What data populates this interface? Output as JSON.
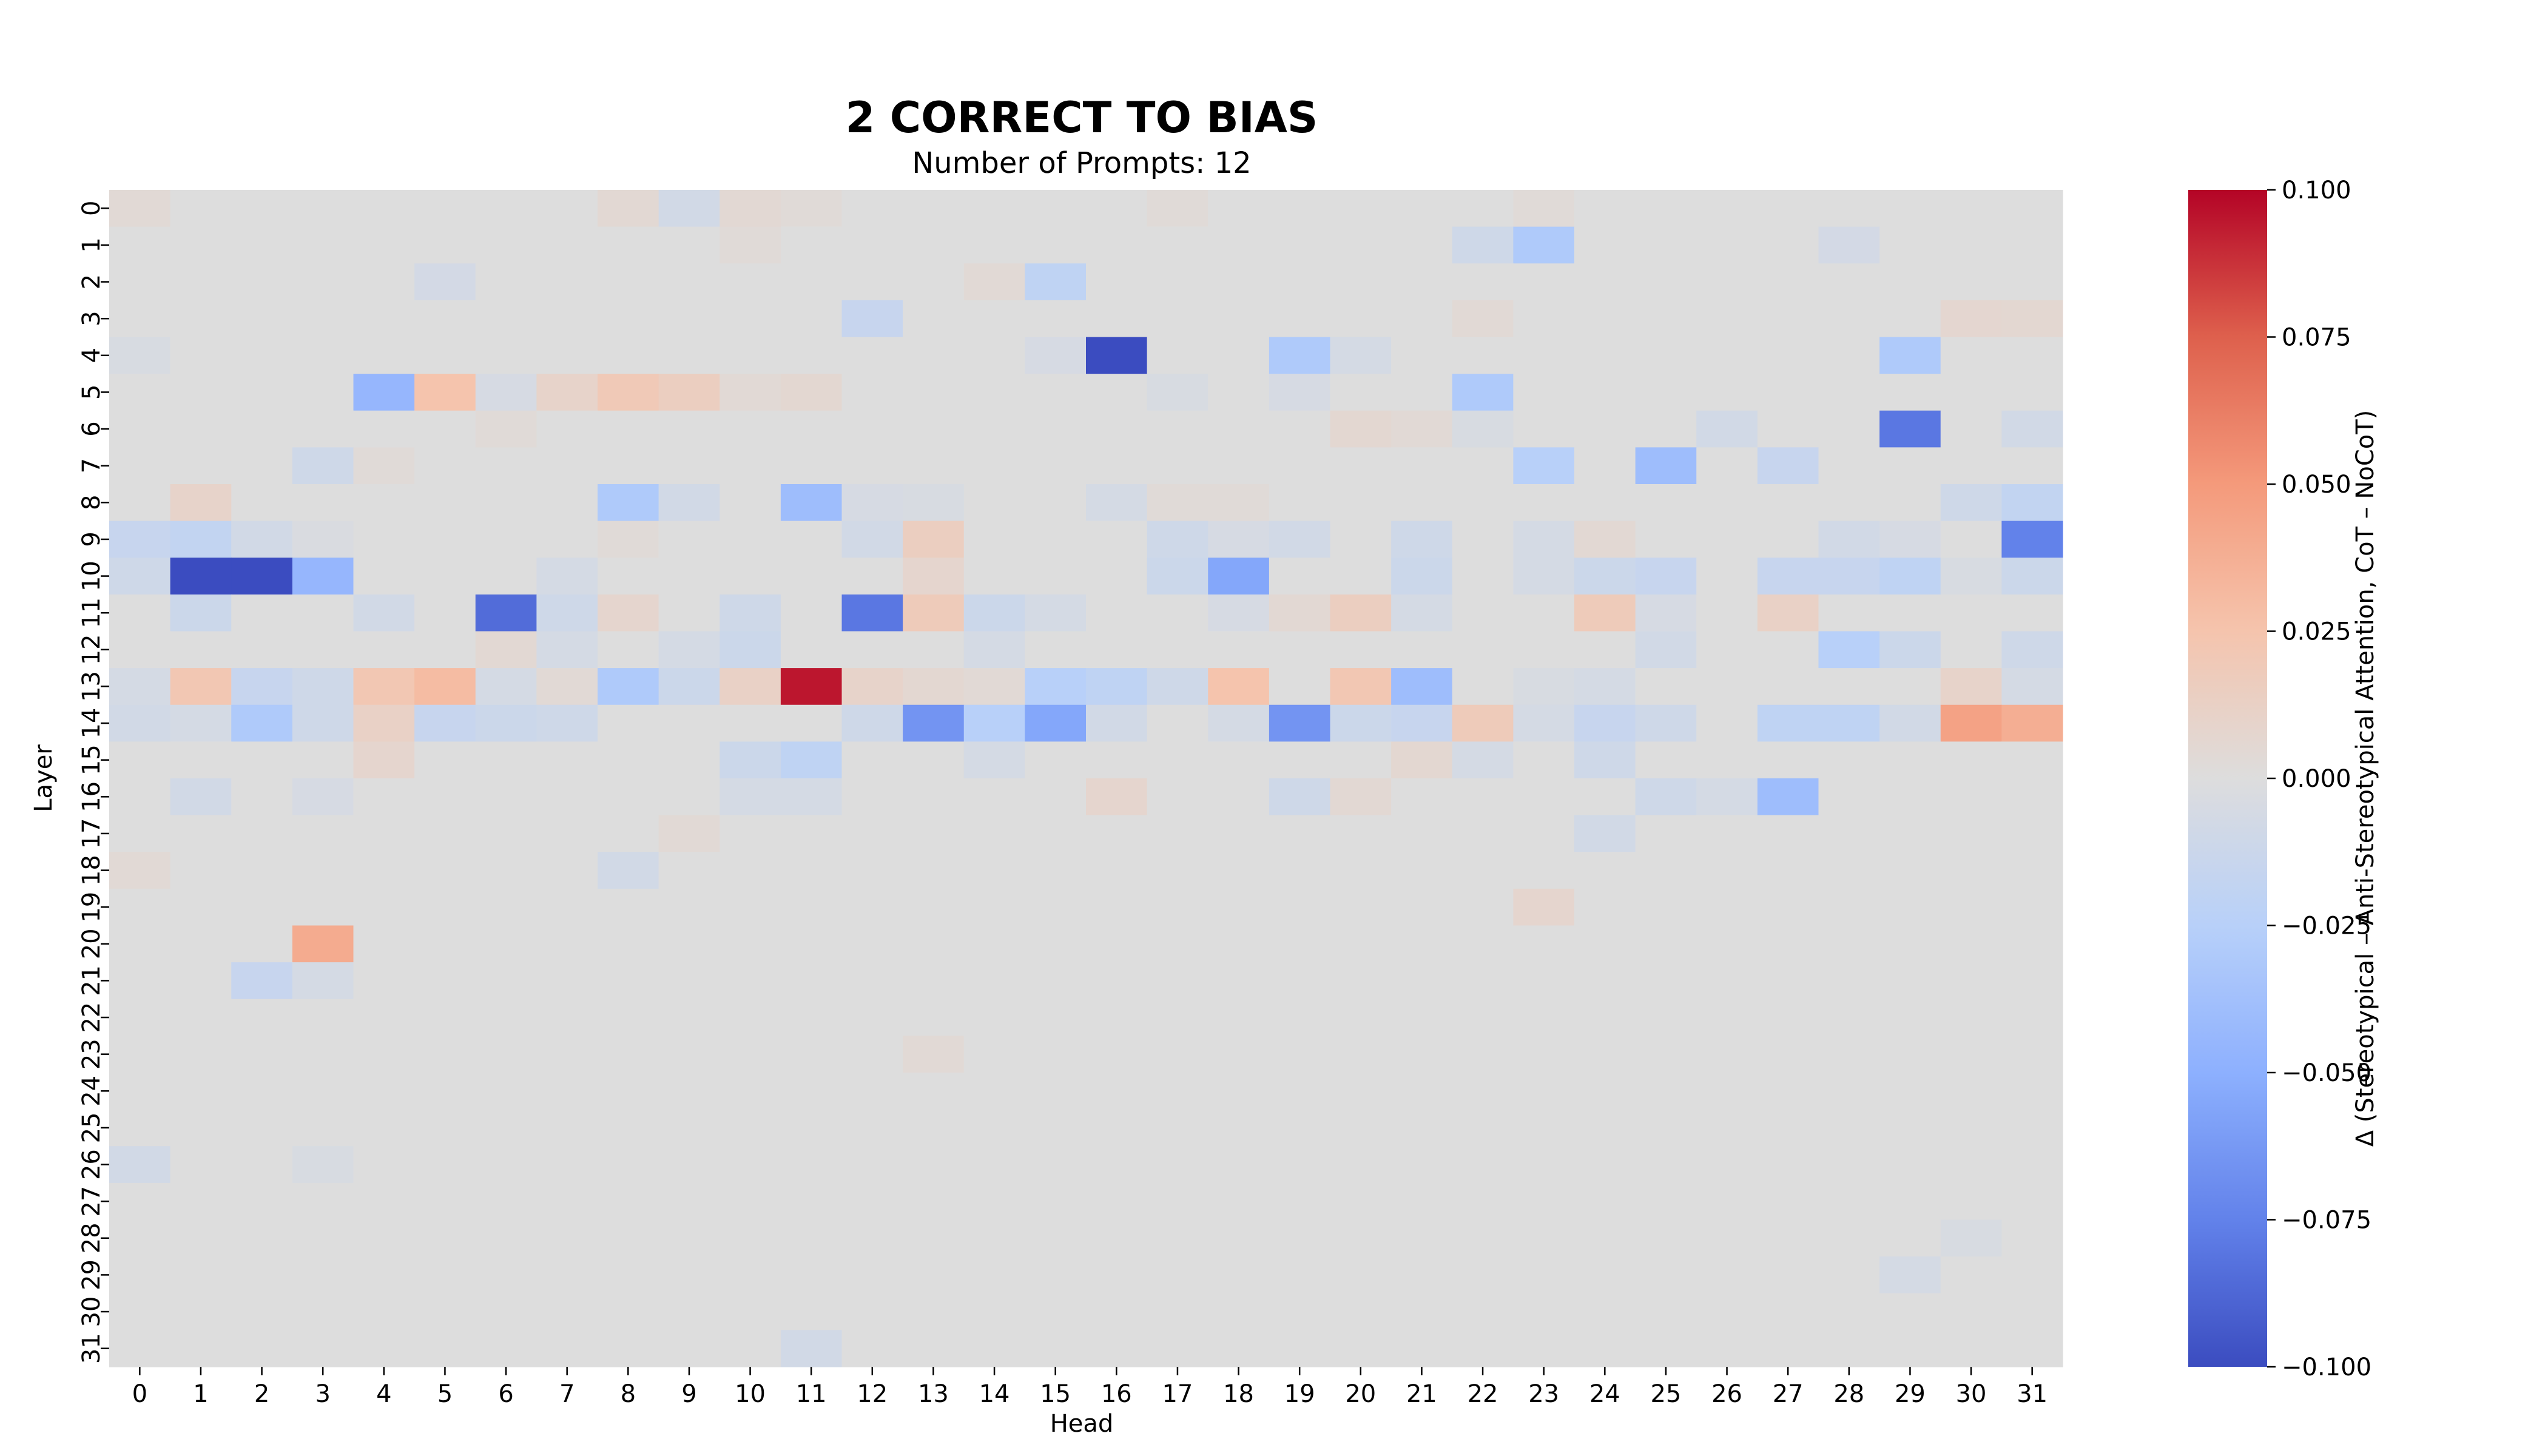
{
  "chart_data": {
    "type": "heatmap",
    "title": "2 CORRECT TO BIAS",
    "subtitle": "Number of Prompts: 12",
    "xlabel": "Head",
    "ylabel": "Layer",
    "x_categories": [
      "0",
      "1",
      "2",
      "3",
      "4",
      "5",
      "6",
      "7",
      "8",
      "9",
      "10",
      "11",
      "12",
      "13",
      "14",
      "15",
      "16",
      "17",
      "18",
      "19",
      "20",
      "21",
      "22",
      "23",
      "24",
      "25",
      "26",
      "27",
      "28",
      "29",
      "30",
      "31"
    ],
    "y_categories": [
      "0",
      "1",
      "2",
      "3",
      "4",
      "5",
      "6",
      "7",
      "8",
      "9",
      "10",
      "11",
      "12",
      "13",
      "14",
      "15",
      "16",
      "17",
      "18",
      "19",
      "20",
      "21",
      "22",
      "23",
      "24",
      "25",
      "26",
      "27",
      "28",
      "29",
      "30",
      "31"
    ],
    "colorbar": {
      "label": "Δ (Stereotypical – Anti-Stereotypical Attention, CoT – NoCoT)",
      "range": [
        -0.1,
        0.1
      ],
      "colormap": "coolwarm",
      "ticks": [
        0.1,
        0.075,
        0.05,
        0.025,
        0.0,
        -0.025,
        -0.05,
        -0.075,
        -0.1
      ],
      "tick_labels": [
        "0.100",
        "0.075",
        "0.050",
        "0.025",
        "0.000",
        "−0.025",
        "−0.050",
        "−0.075",
        "−0.100"
      ]
    },
    "grid": false,
    "baseline_value": 0.0,
    "notable_cells": [
      {
        "layer": 0,
        "head": 0,
        "value": 0.004
      },
      {
        "layer": 0,
        "head": 8,
        "value": 0.005
      },
      {
        "layer": 0,
        "head": 9,
        "value": -0.008
      },
      {
        "layer": 0,
        "head": 10,
        "value": 0.005
      },
      {
        "layer": 0,
        "head": 11,
        "value": 0.003
      },
      {
        "layer": 0,
        "head": 17,
        "value": 0.003
      },
      {
        "layer": 0,
        "head": 23,
        "value": 0.003
      },
      {
        "layer": 1,
        "head": 10,
        "value": 0.003
      },
      {
        "layer": 1,
        "head": 22,
        "value": -0.01
      },
      {
        "layer": 1,
        "head": 23,
        "value": -0.03
      },
      {
        "layer": 1,
        "head": 28,
        "value": -0.007
      },
      {
        "layer": 2,
        "head": 5,
        "value": -0.007
      },
      {
        "layer": 2,
        "head": 14,
        "value": 0.004
      },
      {
        "layer": 2,
        "head": 15,
        "value": -0.02
      },
      {
        "layer": 3,
        "head": 12,
        "value": -0.015
      },
      {
        "layer": 3,
        "head": 22,
        "value": 0.004
      },
      {
        "layer": 3,
        "head": 30,
        "value": 0.007
      },
      {
        "layer": 3,
        "head": 31,
        "value": 0.006
      },
      {
        "layer": 4,
        "head": 0,
        "value": -0.004
      },
      {
        "layer": 4,
        "head": 15,
        "value": -0.005
      },
      {
        "layer": 4,
        "head": 16,
        "value": -0.1
      },
      {
        "layer": 4,
        "head": 19,
        "value": -0.03
      },
      {
        "layer": 4,
        "head": 20,
        "value": -0.006
      },
      {
        "layer": 4,
        "head": 29,
        "value": -0.03
      },
      {
        "layer": 5,
        "head": 4,
        "value": -0.045
      },
      {
        "layer": 5,
        "head": 5,
        "value": 0.025
      },
      {
        "layer": 5,
        "head": 6,
        "value": -0.005
      },
      {
        "layer": 5,
        "head": 7,
        "value": 0.01
      },
      {
        "layer": 5,
        "head": 8,
        "value": 0.02
      },
      {
        "layer": 5,
        "head": 9,
        "value": 0.015
      },
      {
        "layer": 5,
        "head": 10,
        "value": 0.004
      },
      {
        "layer": 5,
        "head": 11,
        "value": 0.006
      },
      {
        "layer": 5,
        "head": 17,
        "value": -0.004
      },
      {
        "layer": 5,
        "head": 19,
        "value": -0.005
      },
      {
        "layer": 5,
        "head": 22,
        "value": -0.03
      },
      {
        "layer": 6,
        "head": 6,
        "value": 0.003
      },
      {
        "layer": 6,
        "head": 20,
        "value": 0.006
      },
      {
        "layer": 6,
        "head": 21,
        "value": 0.004
      },
      {
        "layer": 6,
        "head": 22,
        "value": -0.004
      },
      {
        "layer": 6,
        "head": 26,
        "value": -0.008
      },
      {
        "layer": 6,
        "head": 29,
        "value": -0.08
      },
      {
        "layer": 6,
        "head": 31,
        "value": -0.008
      },
      {
        "layer": 7,
        "head": 3,
        "value": -0.01
      },
      {
        "layer": 7,
        "head": 4,
        "value": 0.003
      },
      {
        "layer": 7,
        "head": 23,
        "value": -0.025
      },
      {
        "layer": 7,
        "head": 25,
        "value": -0.04
      },
      {
        "layer": 7,
        "head": 27,
        "value": -0.015
      },
      {
        "layer": 8,
        "head": 1,
        "value": 0.01
      },
      {
        "layer": 8,
        "head": 8,
        "value": -0.03
      },
      {
        "layer": 8,
        "head": 9,
        "value": -0.008
      },
      {
        "layer": 8,
        "head": 11,
        "value": -0.04
      },
      {
        "layer": 8,
        "head": 12,
        "value": -0.005
      },
      {
        "layer": 8,
        "head": 13,
        "value": -0.004
      },
      {
        "layer": 8,
        "head": 16,
        "value": -0.006
      },
      {
        "layer": 8,
        "head": 17,
        "value": 0.003
      },
      {
        "layer": 8,
        "head": 18,
        "value": 0.003
      },
      {
        "layer": 8,
        "head": 30,
        "value": -0.01
      },
      {
        "layer": 8,
        "head": 31,
        "value": -0.018
      },
      {
        "layer": 9,
        "head": 0,
        "value": -0.015
      },
      {
        "layer": 9,
        "head": 1,
        "value": -0.018
      },
      {
        "layer": 9,
        "head": 2,
        "value": -0.008
      },
      {
        "layer": 9,
        "head": 3,
        "value": -0.003
      },
      {
        "layer": 9,
        "head": 8,
        "value": 0.003
      },
      {
        "layer": 9,
        "head": 12,
        "value": -0.008
      },
      {
        "layer": 9,
        "head": 13,
        "value": 0.015
      },
      {
        "layer": 9,
        "head": 17,
        "value": -0.01
      },
      {
        "layer": 9,
        "head": 18,
        "value": -0.005
      },
      {
        "layer": 9,
        "head": 19,
        "value": -0.008
      },
      {
        "layer": 9,
        "head": 21,
        "value": -0.01
      },
      {
        "layer": 9,
        "head": 23,
        "value": -0.006
      },
      {
        "layer": 9,
        "head": 24,
        "value": 0.005
      },
      {
        "layer": 9,
        "head": 28,
        "value": -0.008
      },
      {
        "layer": 9,
        "head": 29,
        "value": -0.005
      },
      {
        "layer": 9,
        "head": 31,
        "value": -0.075
      },
      {
        "layer": 10,
        "head": 0,
        "value": -0.01
      },
      {
        "layer": 10,
        "head": 1,
        "value": -0.1
      },
      {
        "layer": 10,
        "head": 2,
        "value": -0.1
      },
      {
        "layer": 10,
        "head": 3,
        "value": -0.045
      },
      {
        "layer": 10,
        "head": 7,
        "value": -0.006
      },
      {
        "layer": 10,
        "head": 13,
        "value": 0.008
      },
      {
        "layer": 10,
        "head": 17,
        "value": -0.012
      },
      {
        "layer": 10,
        "head": 18,
        "value": -0.055
      },
      {
        "layer": 10,
        "head": 21,
        "value": -0.012
      },
      {
        "layer": 10,
        "head": 23,
        "value": -0.006
      },
      {
        "layer": 10,
        "head": 24,
        "value": -0.012
      },
      {
        "layer": 10,
        "head": 25,
        "value": -0.015
      },
      {
        "layer": 10,
        "head": 27,
        "value": -0.015
      },
      {
        "layer": 10,
        "head": 28,
        "value": -0.015
      },
      {
        "layer": 10,
        "head": 29,
        "value": -0.02
      },
      {
        "layer": 10,
        "head": 30,
        "value": -0.004
      },
      {
        "layer": 10,
        "head": 31,
        "value": -0.012
      },
      {
        "layer": 11,
        "head": 1,
        "value": -0.012
      },
      {
        "layer": 11,
        "head": 4,
        "value": -0.008
      },
      {
        "layer": 11,
        "head": 6,
        "value": -0.085
      },
      {
        "layer": 11,
        "head": 7,
        "value": -0.01
      },
      {
        "layer": 11,
        "head": 8,
        "value": 0.008
      },
      {
        "layer": 11,
        "head": 10,
        "value": -0.01
      },
      {
        "layer": 11,
        "head": 12,
        "value": -0.08
      },
      {
        "layer": 11,
        "head": 13,
        "value": 0.018
      },
      {
        "layer": 11,
        "head": 14,
        "value": -0.012
      },
      {
        "layer": 11,
        "head": 15,
        "value": -0.006
      },
      {
        "layer": 11,
        "head": 18,
        "value": -0.005
      },
      {
        "layer": 11,
        "head": 19,
        "value": 0.005
      },
      {
        "layer": 11,
        "head": 20,
        "value": 0.015
      },
      {
        "layer": 11,
        "head": 21,
        "value": -0.006
      },
      {
        "layer": 11,
        "head": 24,
        "value": 0.018
      },
      {
        "layer": 11,
        "head": 25,
        "value": -0.005
      },
      {
        "layer": 11,
        "head": 27,
        "value": 0.012
      },
      {
        "layer": 12,
        "head": 6,
        "value": 0.005
      },
      {
        "layer": 12,
        "head": 7,
        "value": -0.006
      },
      {
        "layer": 12,
        "head": 9,
        "value": -0.006
      },
      {
        "layer": 12,
        "head": 10,
        "value": -0.012
      },
      {
        "layer": 12,
        "head": 14,
        "value": -0.006
      },
      {
        "layer": 12,
        "head": 25,
        "value": -0.008
      },
      {
        "layer": 12,
        "head": 28,
        "value": -0.025
      },
      {
        "layer": 12,
        "head": 29,
        "value": -0.012
      },
      {
        "layer": 12,
        "head": 31,
        "value": -0.01
      },
      {
        "layer": 13,
        "head": 0,
        "value": -0.006
      },
      {
        "layer": 13,
        "head": 1,
        "value": 0.022
      },
      {
        "layer": 13,
        "head": 2,
        "value": -0.015
      },
      {
        "layer": 13,
        "head": 3,
        "value": -0.01
      },
      {
        "layer": 13,
        "head": 4,
        "value": 0.022
      },
      {
        "layer": 13,
        "head": 5,
        "value": 0.03
      },
      {
        "layer": 13,
        "head": 6,
        "value": -0.006
      },
      {
        "layer": 13,
        "head": 7,
        "value": 0.004
      },
      {
        "layer": 13,
        "head": 8,
        "value": -0.03
      },
      {
        "layer": 13,
        "head": 9,
        "value": -0.012
      },
      {
        "layer": 13,
        "head": 10,
        "value": 0.012
      },
      {
        "layer": 13,
        "head": 11,
        "value": 0.095
      },
      {
        "layer": 13,
        "head": 12,
        "value": 0.01
      },
      {
        "layer": 13,
        "head": 13,
        "value": 0.006
      },
      {
        "layer": 13,
        "head": 14,
        "value": 0.004
      },
      {
        "layer": 13,
        "head": 15,
        "value": -0.025
      },
      {
        "layer": 13,
        "head": 16,
        "value": -0.02
      },
      {
        "layer": 13,
        "head": 17,
        "value": -0.01
      },
      {
        "layer": 13,
        "head": 18,
        "value": 0.025
      },
      {
        "layer": 13,
        "head": 20,
        "value": 0.022
      },
      {
        "layer": 13,
        "head": 21,
        "value": -0.04
      },
      {
        "layer": 13,
        "head": 23,
        "value": -0.004
      },
      {
        "layer": 13,
        "head": 24,
        "value": -0.006
      },
      {
        "layer": 13,
        "head": 30,
        "value": 0.01
      },
      {
        "layer": 13,
        "head": 31,
        "value": -0.006
      },
      {
        "layer": 14,
        "head": 0,
        "value": -0.008
      },
      {
        "layer": 14,
        "head": 1,
        "value": -0.006
      },
      {
        "layer": 14,
        "head": 2,
        "value": -0.03
      },
      {
        "layer": 14,
        "head": 3,
        "value": -0.01
      },
      {
        "layer": 14,
        "head": 4,
        "value": 0.012
      },
      {
        "layer": 14,
        "head": 5,
        "value": -0.015
      },
      {
        "layer": 14,
        "head": 6,
        "value": -0.012
      },
      {
        "layer": 14,
        "head": 7,
        "value": -0.01
      },
      {
        "layer": 14,
        "head": 12,
        "value": -0.01
      },
      {
        "layer": 14,
        "head": 13,
        "value": -0.065
      },
      {
        "layer": 14,
        "head": 14,
        "value": -0.025
      },
      {
        "layer": 14,
        "head": 15,
        "value": -0.055
      },
      {
        "layer": 14,
        "head": 16,
        "value": -0.008
      },
      {
        "layer": 14,
        "head": 18,
        "value": -0.006
      },
      {
        "layer": 14,
        "head": 19,
        "value": -0.065
      },
      {
        "layer": 14,
        "head": 20,
        "value": -0.012
      },
      {
        "layer": 14,
        "head": 21,
        "value": -0.015
      },
      {
        "layer": 14,
        "head": 22,
        "value": 0.018
      },
      {
        "layer": 14,
        "head": 23,
        "value": -0.006
      },
      {
        "layer": 14,
        "head": 24,
        "value": -0.015
      },
      {
        "layer": 14,
        "head": 25,
        "value": -0.01
      },
      {
        "layer": 14,
        "head": 27,
        "value": -0.02
      },
      {
        "layer": 14,
        "head": 28,
        "value": -0.02
      },
      {
        "layer": 14,
        "head": 29,
        "value": -0.008
      },
      {
        "layer": 14,
        "head": 30,
        "value": 0.045
      },
      {
        "layer": 14,
        "head": 31,
        "value": 0.038
      },
      {
        "layer": 15,
        "head": 4,
        "value": 0.008
      },
      {
        "layer": 15,
        "head": 10,
        "value": -0.012
      },
      {
        "layer": 15,
        "head": 11,
        "value": -0.02
      },
      {
        "layer": 15,
        "head": 14,
        "value": -0.006
      },
      {
        "layer": 15,
        "head": 21,
        "value": 0.006
      },
      {
        "layer": 15,
        "head": 22,
        "value": -0.006
      },
      {
        "layer": 15,
        "head": 24,
        "value": -0.01
      },
      {
        "layer": 16,
        "head": 1,
        "value": -0.008
      },
      {
        "layer": 16,
        "head": 3,
        "value": -0.005
      },
      {
        "layer": 16,
        "head": 10,
        "value": -0.006
      },
      {
        "layer": 16,
        "head": 11,
        "value": -0.006
      },
      {
        "layer": 16,
        "head": 16,
        "value": 0.008
      },
      {
        "layer": 16,
        "head": 19,
        "value": -0.01
      },
      {
        "layer": 16,
        "head": 20,
        "value": 0.005
      },
      {
        "layer": 16,
        "head": 25,
        "value": -0.01
      },
      {
        "layer": 16,
        "head": 26,
        "value": -0.006
      },
      {
        "layer": 16,
        "head": 27,
        "value": -0.04
      },
      {
        "layer": 17,
        "head": 9,
        "value": 0.004
      },
      {
        "layer": 17,
        "head": 24,
        "value": -0.008
      },
      {
        "layer": 18,
        "head": 0,
        "value": 0.004
      },
      {
        "layer": 18,
        "head": 8,
        "value": -0.008
      },
      {
        "layer": 19,
        "head": 23,
        "value": 0.008
      },
      {
        "layer": 20,
        "head": 3,
        "value": 0.04
      },
      {
        "layer": 21,
        "head": 2,
        "value": -0.015
      },
      {
        "layer": 21,
        "head": 3,
        "value": -0.006
      },
      {
        "layer": 23,
        "head": 13,
        "value": 0.004
      },
      {
        "layer": 26,
        "head": 0,
        "value": -0.008
      },
      {
        "layer": 26,
        "head": 3,
        "value": -0.004
      },
      {
        "layer": 28,
        "head": 30,
        "value": -0.004
      },
      {
        "layer": 29,
        "head": 29,
        "value": -0.006
      },
      {
        "layer": 31,
        "head": 11,
        "value": -0.008
      }
    ]
  }
}
